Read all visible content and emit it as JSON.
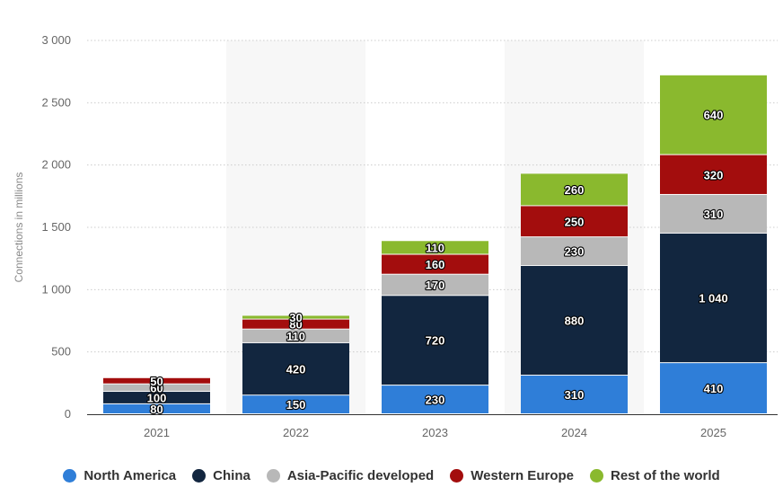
{
  "chart_data": {
    "type": "bar",
    "stacked": true,
    "categories": [
      "2021",
      "2022",
      "2023",
      "2024",
      "2025"
    ],
    "series": [
      {
        "name": "North America",
        "color": "#2f7ed8",
        "values": [
          80,
          150,
          230,
          310,
          410
        ]
      },
      {
        "name": "China",
        "color": "#12263f",
        "values": [
          100,
          420,
          720,
          880,
          1040
        ]
      },
      {
        "name": "Asia-Pacific developed",
        "color": "#b8b8b8",
        "values": [
          60,
          110,
          170,
          230,
          310
        ]
      },
      {
        "name": "Western Europe",
        "color": "#a30d0d",
        "values": [
          50,
          80,
          160,
          250,
          320
        ]
      },
      {
        "name": "Rest of the world",
        "color": "#8ab92e",
        "values": [
          0,
          30,
          110,
          260,
          640
        ]
      }
    ],
    "data_labels": [
      [
        "80",
        "150",
        "230",
        "310",
        "410"
      ],
      [
        "100",
        "420",
        "720",
        "880",
        "1 040"
      ],
      [
        "60",
        "110",
        "170",
        "230",
        "310"
      ],
      [
        "50",
        "80",
        "160",
        "250",
        "320"
      ],
      [
        "",
        "30",
        "110",
        "260",
        "640"
      ]
    ],
    "yticks": [
      0,
      500,
      1000,
      1500,
      2000,
      2500,
      3000
    ],
    "ytick_labels": [
      "0",
      "500",
      "1 000",
      "1 500",
      "2 000",
      "2 500",
      "3 000"
    ],
    "ylim": [
      0,
      3000
    ],
    "ylabel": "Connections in millions",
    "xlabel": "",
    "grid": "horizontal-dotted",
    "legend_position": "bottom"
  }
}
